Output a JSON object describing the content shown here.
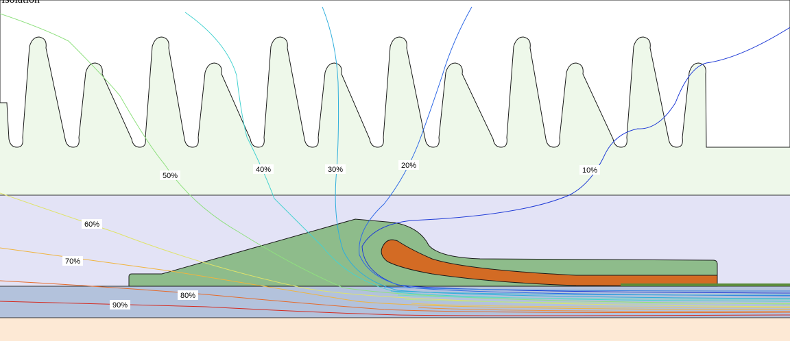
{
  "title": "Isolation",
  "colors": {
    "slot_region": "#eef8ea",
    "layer_region": "#e3e3f6",
    "strip": "#b3c2dc",
    "bottom": "#fde9d5",
    "insulation": "#8ebc8b",
    "conductor": "#d36b24",
    "dark_green": "#5a8a3a",
    "outline": "#1a1a1a"
  },
  "contours": [
    {
      "label": "10%",
      "color": "#1f3bd6"
    },
    {
      "label": "20%",
      "color": "#2f69e6"
    },
    {
      "label": "30%",
      "color": "#2faedc"
    },
    {
      "label": "40%",
      "color": "#45d2d0"
    },
    {
      "label": "50%",
      "color": "#8fe07f"
    },
    {
      "label": "60%",
      "color": "#dfe36a"
    },
    {
      "label": "70%",
      "color": "#f0b43e"
    },
    {
      "label": "80%",
      "color": "#e56a2a"
    },
    {
      "label": "90%",
      "color": "#d42a1f"
    }
  ]
}
